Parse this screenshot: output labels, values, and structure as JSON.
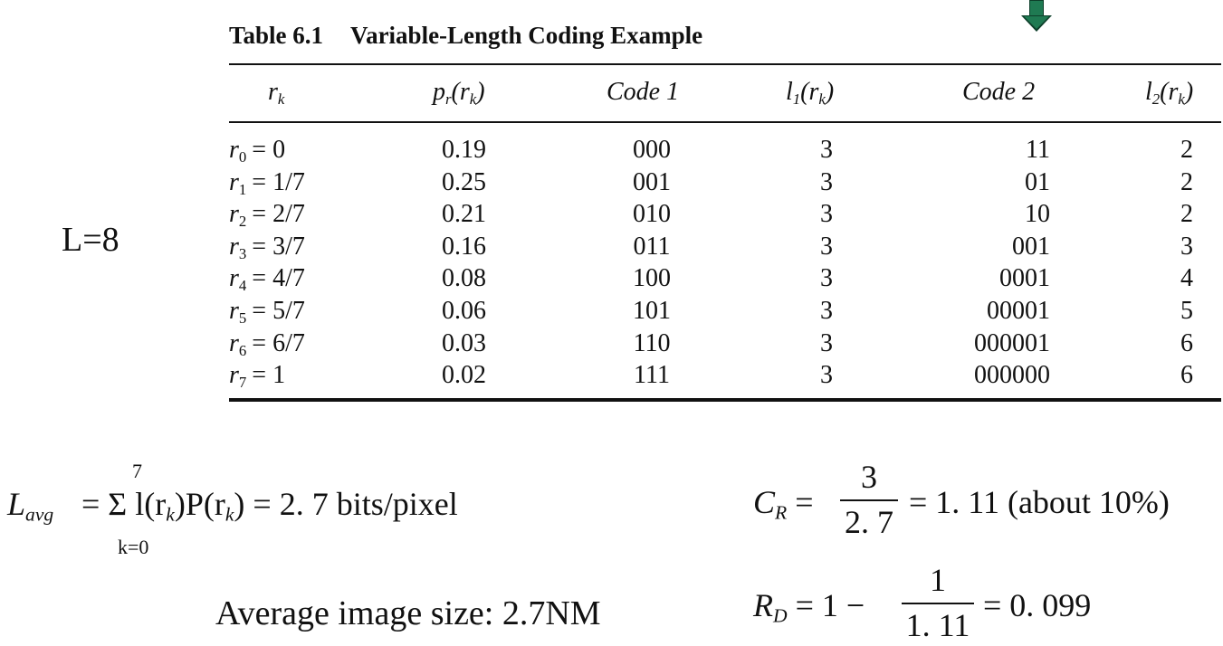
{
  "table": {
    "number": "Table 6.1",
    "title": "Variable-Length Coding Example",
    "headers": [
      "r",
      "p",
      "Code 1",
      "l",
      "Code 2",
      "l"
    ],
    "header_args": {
      "rk": "k",
      "pr": "r",
      "pr_arg": "(r",
      "l1": "1",
      "l2": "2",
      "close": ")"
    },
    "rows": [
      {
        "sub": "0",
        "val": "= 0",
        "p": "0.19",
        "code1": "000",
        "l1": "3",
        "code2": "11",
        "l2": "2"
      },
      {
        "sub": "1",
        "val": "= 1/7",
        "p": "0.25",
        "code1": "001",
        "l1": "3",
        "code2": "01",
        "l2": "2"
      },
      {
        "sub": "2",
        "val": "= 2/7",
        "p": "0.21",
        "code1": "010",
        "l1": "3",
        "code2": "10",
        "l2": "2"
      },
      {
        "sub": "3",
        "val": "= 3/7",
        "p": "0.16",
        "code1": "011",
        "l1": "3",
        "code2": "001",
        "l2": "3"
      },
      {
        "sub": "4",
        "val": "= 4/7",
        "p": "0.08",
        "code1": "100",
        "l1": "3",
        "code2": "0001",
        "l2": "4"
      },
      {
        "sub": "5",
        "val": "= 5/7",
        "p": "0.06",
        "code1": "101",
        "l1": "3",
        "code2": "00001",
        "l2": "5"
      },
      {
        "sub": "6",
        "val": "= 6/7",
        "p": "0.03",
        "code1": "110",
        "l1": "3",
        "code2": "000001",
        "l2": "6"
      },
      {
        "sub": "7",
        "val": "= 1",
        "p": "0.02",
        "code1": "111",
        "l1": "3",
        "code2": "000000",
        "l2": "6"
      }
    ]
  },
  "levels_label": "L=8",
  "lavg": {
    "lhs": "L",
    "lhs_sub": "avg",
    "sum_top": "7",
    "sum_bottom": "k=0",
    "rhs": "= Σ l(r",
    "rhs_mid": ")P(r",
    "rhs_end": ") = 2. 7 bits/pixel",
    "k": "k"
  },
  "cr": {
    "lhs": "C",
    "lhs_sub": "R",
    "num": "3",
    "den": "2. 7",
    "result": "= 1. 11 (about 10%)"
  },
  "rd": {
    "lhs": "R",
    "lhs_sub": "D",
    "prefix": "= 1 −",
    "num": "1",
    "den": "1. 11",
    "result": "= 0. 099"
  },
  "avg_size": "Average image size: 2.7NM",
  "colors": {
    "arrow_fill": "#1f7a52",
    "arrow_border": "#0d3f2a"
  },
  "icons": {
    "arrow": "down-arrow-icon"
  }
}
